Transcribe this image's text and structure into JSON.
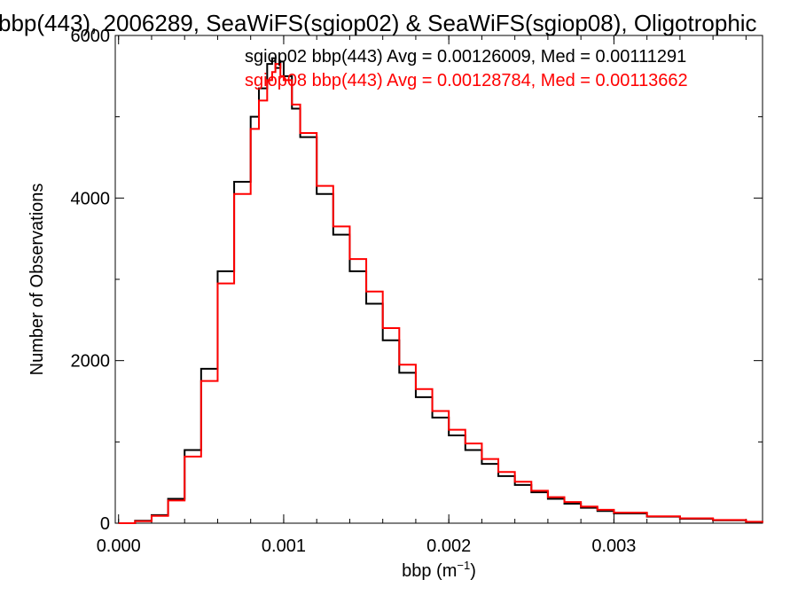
{
  "chart_data": {
    "type": "line",
    "title": "bbp(443), 2006289, SeaWiFS(sgiop02) & SeaWiFS(sgiop08), Oligotrophic",
    "xlabel_main": "bbp (m",
    "xlabel_sup": "−1",
    "xlabel_close": ")",
    "ylabel": "Number of Observations",
    "xlim": [
      -2e-05,
      0.0039
    ],
    "ylim": [
      0,
      6000
    ],
    "xticks": [
      0.0,
      0.001,
      0.002,
      0.003
    ],
    "xtick_labels": [
      "0.000",
      "0.001",
      "0.002",
      "0.003"
    ],
    "yticks": [
      0,
      2000,
      4000,
      6000
    ],
    "ytick_labels": [
      "0",
      "2000",
      "4000",
      "6000"
    ],
    "grid": false,
    "legend_position": "top-right",
    "series": [
      {
        "name": "sgiop02",
        "label": "sgiop02 bbp(443) Avg = 0.00126009, Med = 0.00111291",
        "color": "#000000",
        "x": [
          0.0,
          0.0001,
          0.0002,
          0.0003,
          0.0004,
          0.0005,
          0.0006,
          0.0007,
          0.0008,
          0.00085,
          0.0009,
          0.00093,
          0.00095,
          0.00098,
          0.001,
          0.00105,
          0.0011,
          0.0012,
          0.0013,
          0.0014,
          0.0015,
          0.0016,
          0.0017,
          0.0018,
          0.0019,
          0.002,
          0.0021,
          0.0022,
          0.0023,
          0.0024,
          0.0025,
          0.0026,
          0.0027,
          0.0028,
          0.0029,
          0.003,
          0.0032,
          0.0034,
          0.0036,
          0.0038,
          0.0039
        ],
        "y": [
          0,
          30,
          100,
          300,
          900,
          1900,
          3100,
          4200,
          5000,
          5350,
          5650,
          5720,
          5600,
          5680,
          5500,
          5100,
          4750,
          4050,
          3550,
          3100,
          2700,
          2250,
          1850,
          1550,
          1300,
          1080,
          900,
          730,
          580,
          470,
          380,
          300,
          240,
          190,
          150,
          120,
          80,
          55,
          35,
          15,
          5
        ]
      },
      {
        "name": "sgiop08",
        "label": "sgiop08 bbp(443) Avg = 0.00128784, Med = 0.00113662",
        "color": "#ff0000",
        "x": [
          0.0,
          0.0001,
          0.0002,
          0.0003,
          0.0004,
          0.0005,
          0.0006,
          0.0007,
          0.0008,
          0.00085,
          0.0009,
          0.00093,
          0.00095,
          0.00098,
          0.001,
          0.00105,
          0.0011,
          0.0012,
          0.0013,
          0.0014,
          0.0015,
          0.0016,
          0.0017,
          0.0018,
          0.0019,
          0.002,
          0.0021,
          0.0022,
          0.0023,
          0.0024,
          0.0025,
          0.0026,
          0.0027,
          0.0028,
          0.0029,
          0.003,
          0.0032,
          0.0034,
          0.0036,
          0.0038,
          0.0039
        ],
        "y": [
          0,
          25,
          90,
          280,
          820,
          1750,
          2950,
          4050,
          4850,
          5200,
          5450,
          5550,
          5650,
          5500,
          5450,
          5150,
          4800,
          4150,
          3650,
          3250,
          2850,
          2400,
          1950,
          1650,
          1380,
          1150,
          980,
          790,
          630,
          510,
          400,
          320,
          260,
          205,
          165,
          130,
          85,
          60,
          40,
          18,
          6
        ]
      }
    ]
  }
}
